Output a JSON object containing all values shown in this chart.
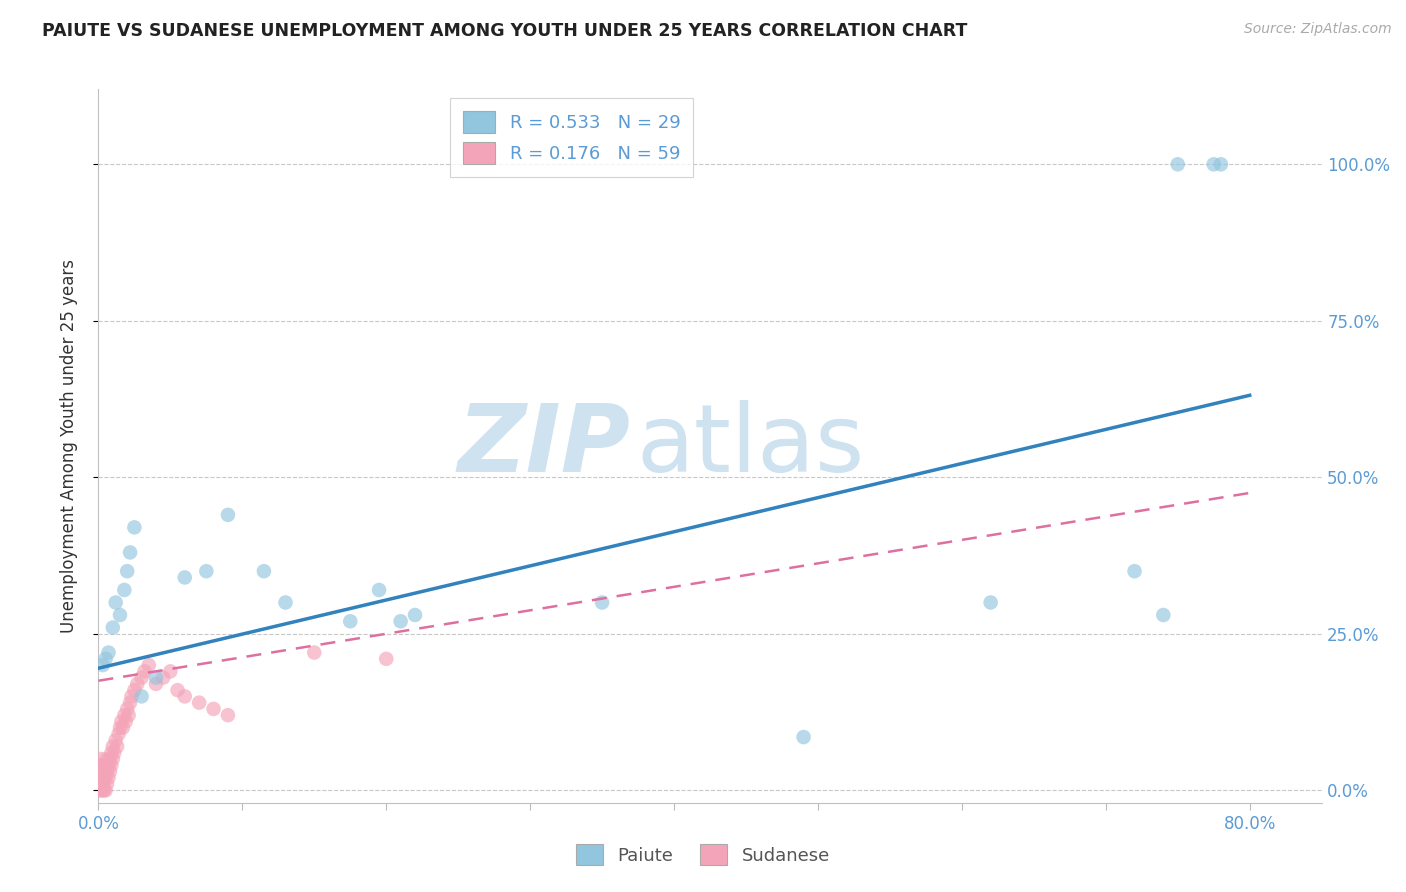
{
  "title": "PAIUTE VS SUDANESE UNEMPLOYMENT AMONG YOUTH UNDER 25 YEARS CORRELATION CHART",
  "source": "Source: ZipAtlas.com",
  "ylabel": "Unemployment Among Youth under 25 years",
  "xlim": [
    0.0,
    0.85
  ],
  "ylim": [
    -0.02,
    1.12
  ],
  "xtick_positions": [
    0.0,
    0.1,
    0.2,
    0.3,
    0.4,
    0.5,
    0.6,
    0.7,
    0.8
  ],
  "xticklabels": [
    "0.0%",
    "",
    "",
    "",
    "",
    "",
    "",
    "",
    "80.0%"
  ],
  "yticks_right": [
    0.0,
    0.25,
    0.5,
    0.75,
    1.0
  ],
  "yticklabels_right": [
    "0.0%",
    "25.0%",
    "50.0%",
    "75.0%",
    "100.0%"
  ],
  "paiute_x": [
    0.003,
    0.005,
    0.007,
    0.01,
    0.012,
    0.015,
    0.018,
    0.02,
    0.022,
    0.025,
    0.03,
    0.04,
    0.06,
    0.075,
    0.09,
    0.115,
    0.13,
    0.195,
    0.21,
    0.175,
    0.22,
    0.35,
    0.49,
    0.62,
    0.72,
    0.74,
    0.75,
    0.775,
    0.78
  ],
  "paiute_y": [
    0.2,
    0.21,
    0.22,
    0.26,
    0.3,
    0.28,
    0.32,
    0.35,
    0.38,
    0.42,
    0.15,
    0.18,
    0.34,
    0.35,
    0.44,
    0.35,
    0.3,
    0.32,
    0.27,
    0.27,
    0.28,
    0.3,
    0.085,
    0.3,
    0.35,
    0.28,
    1.0,
    1.0,
    1.0
  ],
  "sudanese_x": [
    0.001,
    0.001,
    0.001,
    0.001,
    0.001,
    0.002,
    0.002,
    0.002,
    0.002,
    0.002,
    0.003,
    0.003,
    0.003,
    0.003,
    0.004,
    0.004,
    0.004,
    0.005,
    0.005,
    0.005,
    0.006,
    0.006,
    0.006,
    0.007,
    0.007,
    0.008,
    0.008,
    0.009,
    0.009,
    0.01,
    0.01,
    0.011,
    0.012,
    0.013,
    0.014,
    0.015,
    0.016,
    0.017,
    0.018,
    0.019,
    0.02,
    0.021,
    0.022,
    0.023,
    0.025,
    0.027,
    0.03,
    0.032,
    0.035,
    0.04,
    0.045,
    0.05,
    0.055,
    0.06,
    0.07,
    0.08,
    0.09,
    0.15,
    0.2
  ],
  "sudanese_y": [
    0.0,
    0.01,
    0.02,
    0.03,
    0.04,
    0.0,
    0.01,
    0.02,
    0.03,
    0.05,
    0.0,
    0.01,
    0.02,
    0.04,
    0.0,
    0.02,
    0.03,
    0.0,
    0.02,
    0.04,
    0.01,
    0.03,
    0.05,
    0.02,
    0.04,
    0.03,
    0.05,
    0.04,
    0.06,
    0.05,
    0.07,
    0.06,
    0.08,
    0.07,
    0.09,
    0.1,
    0.11,
    0.1,
    0.12,
    0.11,
    0.13,
    0.12,
    0.14,
    0.15,
    0.16,
    0.17,
    0.18,
    0.19,
    0.2,
    0.17,
    0.18,
    0.19,
    0.16,
    0.15,
    0.14,
    0.13,
    0.12,
    0.22,
    0.21
  ],
  "paiute_color": "#92c5de",
  "sudanese_color": "#f4a4b8",
  "paiute_line_color": "#3182bd",
  "sudanese_line_color": "#de6fa1",
  "paiute_line_intercept": 0.195,
  "paiute_line_slope": 0.545,
  "sudanese_line_intercept": 0.175,
  "sudanese_line_slope": 0.375,
  "paiute_R": 0.533,
  "paiute_N": 29,
  "sudanese_R": 0.176,
  "sudanese_N": 59,
  "watermark_zip": "ZIP",
  "watermark_atlas": "atlas",
  "watermark_color": "#cfe2f0",
  "background_color": "#ffffff",
  "grid_color": "#c8c8c8",
  "title_color": "#222222",
  "source_color": "#aaaaaa",
  "tick_color": "#5b9bd5"
}
